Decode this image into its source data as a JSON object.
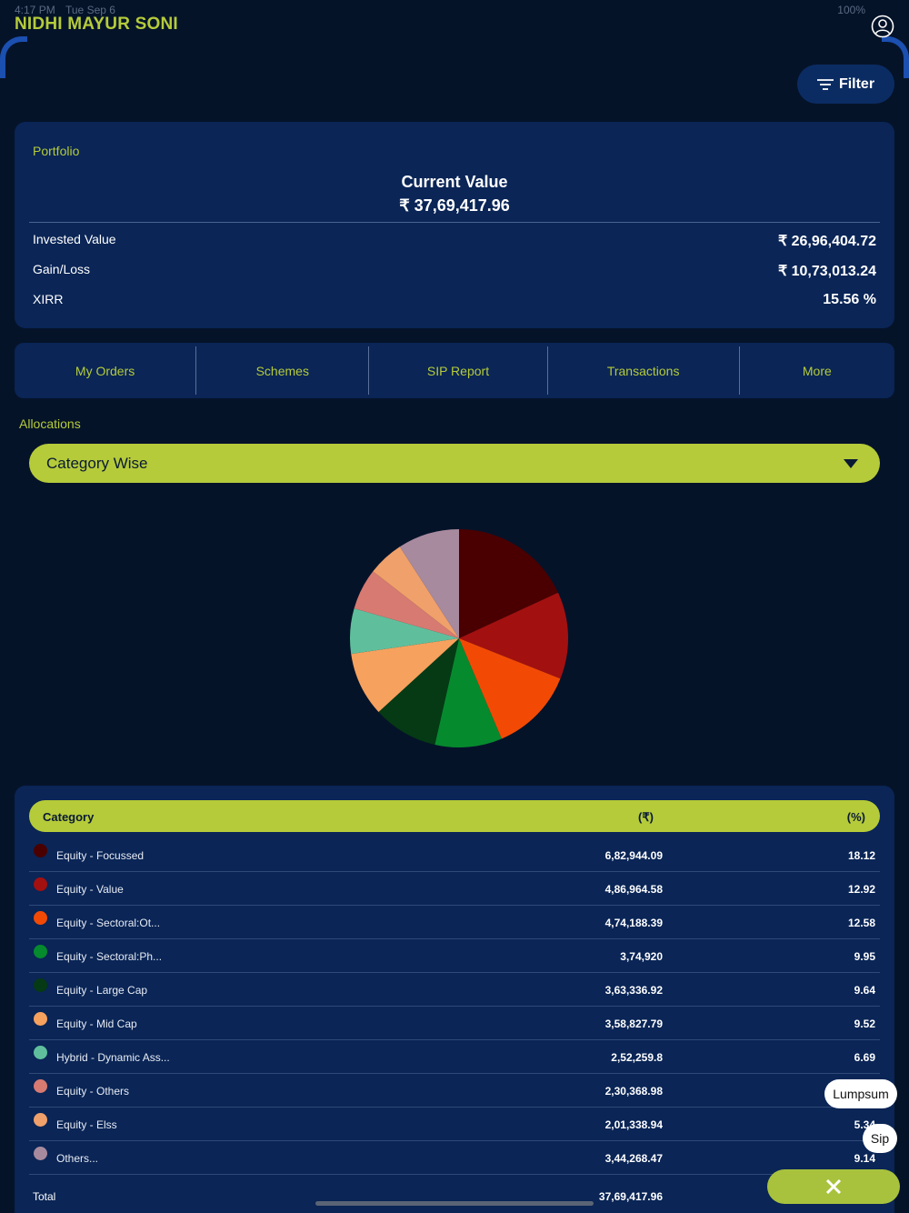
{
  "status": {
    "time": "4:17 PM",
    "date": "Tue Sep 6",
    "battery": "100%"
  },
  "app": {
    "title": "NIDHI MAYUR SONI",
    "filter_label": "Filter"
  },
  "portfolio": {
    "label": "Portfolio",
    "current_value_title": "Current Value",
    "current_value": "₹ 37,69,417.96",
    "rows": [
      {
        "label": "Invested Value",
        "value": "₹ 26,96,404.72"
      },
      {
        "label": "Gain/Loss",
        "value": "₹ 10,73,013.24"
      },
      {
        "label": "XIRR",
        "value": "15.56 %"
      }
    ]
  },
  "tabs": [
    "My Orders",
    "Schemes",
    "SIP Report",
    "Transactions",
    "More"
  ],
  "allocations": {
    "label": "Allocations",
    "dropdown_value": "Category Wise"
  },
  "table": {
    "headers": {
      "category": "Category",
      "amount": "(₹)",
      "percent": "(%)"
    },
    "rows": [
      {
        "name": "Equity - Focussed",
        "amount": "6,82,944.09",
        "percent": "18.12",
        "color": "#4a0000"
      },
      {
        "name": "Equity - Value",
        "amount": "4,86,964.58",
        "percent": "12.92",
        "color": "#a31010"
      },
      {
        "name": "Equity - Sectoral:Ot...",
        "amount": "4,74,188.39",
        "percent": "12.58",
        "color": "#f24a05"
      },
      {
        "name": "Equity - Sectoral:Ph...",
        "amount": "3,74,920",
        "percent": "9.95",
        "color": "#068a2e"
      },
      {
        "name": "Equity - Large Cap",
        "amount": "3,63,336.92",
        "percent": "9.64",
        "color": "#053a14"
      },
      {
        "name": "Equity - Mid Cap",
        "amount": "3,58,827.79",
        "percent": "9.52",
        "color": "#f6a15e"
      },
      {
        "name": "Hybrid - Dynamic Ass...",
        "amount": "2,52,259.8",
        "percent": "6.69",
        "color": "#5fbf9c"
      },
      {
        "name": "Equity - Others",
        "amount": "2,30,368.98",
        "percent": "",
        "color": "#d77a72"
      },
      {
        "name": "Equity - Elss",
        "amount": "2,01,338.94",
        "percent": "5.34",
        "color": "#f0a06a"
      },
      {
        "name": "Others...",
        "amount": "3,44,268.47",
        "percent": "9.14",
        "color": "#a88a9e"
      }
    ],
    "total_label": "Total",
    "total_amount": "37,69,417.96"
  },
  "chart_data": {
    "type": "pie",
    "categories": [
      "Equity - Focussed",
      "Equity - Value",
      "Equity - Sectoral:Ot...",
      "Equity - Sectoral:Ph...",
      "Equity - Large Cap",
      "Equity - Mid Cap",
      "Hybrid - Dynamic Ass...",
      "Equity - Others",
      "Equity - Elss",
      "Others..."
    ],
    "values": [
      18.12,
      12.92,
      12.58,
      9.95,
      9.64,
      9.52,
      6.69,
      6.11,
      5.34,
      9.14
    ],
    "colors": [
      "#4a0000",
      "#a31010",
      "#f24a05",
      "#068a2e",
      "#053a14",
      "#f6a15e",
      "#5fbf9c",
      "#d77a72",
      "#f0a06a",
      "#a88a9e"
    ]
  },
  "floating": {
    "lumpsum": "Lumpsum",
    "sip": "Sip"
  },
  "icons": [
    "profile-icon",
    "filter-icon",
    "chevron-down-icon",
    "close-icon"
  ]
}
